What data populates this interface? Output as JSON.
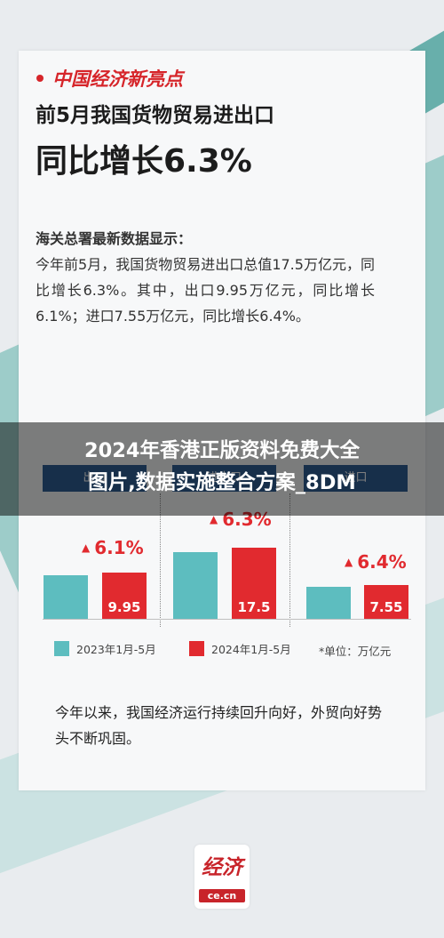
{
  "brand": {
    "name": "中国经济新亮点",
    "accent": "#d6252a"
  },
  "headline": {
    "line1": "前5月我国货物贸易进出口",
    "line2": "同比增长6.3%"
  },
  "body": {
    "title": "海关总署最新数据显示：",
    "text": "今年前5月，我国货物贸易进出口总值17.5万亿元，同比增长6.3%。其中，出口9.95万亿元，同比增长6.1%；进口7.55万亿元，同比增长6.4%。"
  },
  "overlay": {
    "line1": "2024年香港正版资料免费大全",
    "line2": "图片,数据实施整合方案_8DM"
  },
  "tabs": [
    "出口",
    "进出口",
    "进口"
  ],
  "chart_data": {
    "type": "bar",
    "categories": [
      "出口",
      "进出口",
      "进口"
    ],
    "series": [
      {
        "name": "2023年1月-5月",
        "values": [
          9.38,
          16.46,
          7.1
        ],
        "color": "#5dbdbf"
      },
      {
        "name": "2024年1月-5月",
        "values": [
          9.95,
          17.5,
          7.55
        ],
        "color": "#e12a2f"
      }
    ],
    "value_labels": [
      "9.95",
      "17.5",
      "7.55"
    ],
    "growth_labels": [
      "6.1%",
      "6.3%",
      "6.4%"
    ],
    "unit": "*单位：万亿元",
    "legend": [
      "2023年1月-5月",
      "2024年1月-5月"
    ]
  },
  "footer": {
    "text": "今年以来，我国经济运行持续回升向好，外贸向好势头不断巩固。"
  },
  "logo": {
    "chars": "经济",
    "domain": "ce.cn"
  }
}
